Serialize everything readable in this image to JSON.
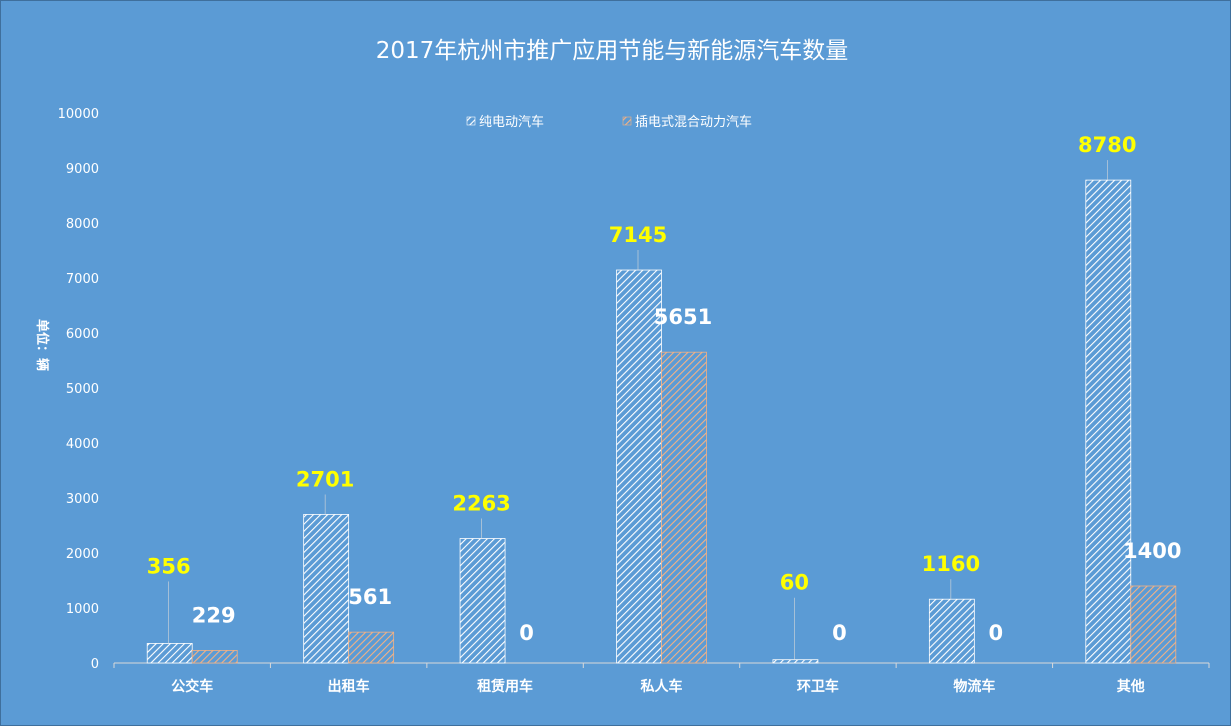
{
  "chart_data": {
    "type": "bar",
    "title": "2017年杭州市推广应用节能与新能源汽车数量",
    "ylabel": "单位：辆",
    "xlabel": "",
    "ylim": [
      0,
      10000
    ],
    "yticks": [
      0,
      1000,
      2000,
      3000,
      4000,
      5000,
      6000,
      7000,
      8000,
      9000,
      10000
    ],
    "categories": [
      "公交车",
      "出租车",
      "租赁用车",
      "私人车",
      "环卫车",
      "物流车",
      "其他"
    ],
    "series": [
      {
        "name": "纯电动汽车",
        "values": [
          356,
          2701,
          2263,
          7145,
          60,
          1160,
          8780
        ],
        "color": "#ffffff",
        "label_color": "#ffff00"
      },
      {
        "name": "插电式混合动力汽车",
        "values": [
          229,
          561,
          0,
          5651,
          0,
          0,
          1400
        ],
        "color": "#f4b183",
        "label_color": "#ffffff"
      }
    ],
    "grid": false,
    "legend": "top-center",
    "pattern": "diagonal-hatch"
  }
}
